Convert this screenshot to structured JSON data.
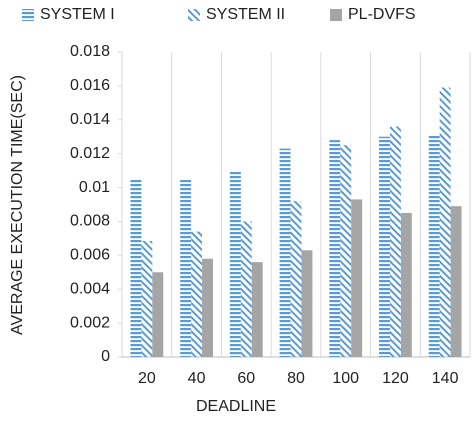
{
  "chart_data": {
    "type": "bar",
    "x_label": "DEADLINE",
    "y_label": "AVERAGE EXECUTION TIME(SEC)",
    "categories": [
      "20",
      "40",
      "60",
      "80",
      "100",
      "120",
      "140"
    ],
    "series": [
      {
        "name": "SYSTEM I",
        "color": "#5b9bd5",
        "pattern": "horizontal",
        "values": [
          0.0105,
          0.0105,
          0.011,
          0.0123,
          0.0128,
          0.013,
          0.0131
        ]
      },
      {
        "name": "SYSTEM II",
        "color": "#5b9bd5",
        "pattern": "diagonal",
        "values": [
          0.00685,
          0.0074,
          0.008,
          0.0092,
          0.0125,
          0.0136,
          0.0159
        ]
      },
      {
        "name": "PL-DVFS",
        "color": "#a5a5a5",
        "pattern": "solid",
        "values": [
          0.005,
          0.0058,
          0.0056,
          0.0063,
          0.0093,
          0.0085,
          0.0089
        ]
      }
    ],
    "ylim": [
      0,
      0.018
    ],
    "yticks": [
      0,
      0.002,
      0.004,
      0.006,
      0.008,
      0.01,
      0.012,
      0.014,
      0.016,
      0.018
    ],
    "legend": "top"
  }
}
